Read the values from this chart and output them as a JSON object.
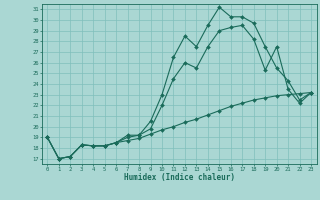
{
  "xlabel": "Humidex (Indice chaleur)",
  "xlim": [
    -0.5,
    23.5
  ],
  "ylim": [
    16.5,
    31.5
  ],
  "xticks": [
    0,
    1,
    2,
    3,
    4,
    5,
    6,
    7,
    8,
    9,
    10,
    11,
    12,
    13,
    14,
    15,
    16,
    17,
    18,
    19,
    20,
    21,
    22,
    23
  ],
  "yticks": [
    17,
    18,
    19,
    20,
    21,
    22,
    23,
    24,
    25,
    26,
    27,
    28,
    29,
    30,
    31
  ],
  "bg_color": "#aad7d3",
  "grid_color": "#80bfbb",
  "line_color": "#1a6b5a",
  "line1_x": [
    0,
    1,
    2,
    3,
    4,
    5,
    6,
    7,
    8,
    9,
    10,
    11,
    12,
    13,
    14,
    15,
    16,
    17,
    18,
    19,
    20,
    21,
    22,
    23
  ],
  "line1_y": [
    19.0,
    17.0,
    17.2,
    18.3,
    18.2,
    18.2,
    18.5,
    19.2,
    19.2,
    20.5,
    23.0,
    26.5,
    28.5,
    27.5,
    29.5,
    31.2,
    30.3,
    30.3,
    29.7,
    27.5,
    25.5,
    24.3,
    22.5,
    23.2
  ],
  "line2_x": [
    0,
    1,
    2,
    3,
    4,
    5,
    6,
    7,
    8,
    9,
    10,
    11,
    12,
    13,
    14,
    15,
    16,
    17,
    18,
    19,
    20,
    21,
    22,
    23
  ],
  "line2_y": [
    19.0,
    17.0,
    17.2,
    18.3,
    18.2,
    18.2,
    18.5,
    19.0,
    19.2,
    19.8,
    22.0,
    24.5,
    26.0,
    25.5,
    27.5,
    29.0,
    29.3,
    29.5,
    28.2,
    25.3,
    27.5,
    23.5,
    22.2,
    23.2
  ],
  "line3_x": [
    0,
    1,
    2,
    3,
    4,
    5,
    6,
    7,
    8,
    9,
    10,
    11,
    12,
    13,
    14,
    15,
    16,
    17,
    18,
    19,
    20,
    21,
    22,
    23
  ],
  "line3_y": [
    19.0,
    17.0,
    17.2,
    18.3,
    18.2,
    18.2,
    18.5,
    18.7,
    18.9,
    19.3,
    19.7,
    20.0,
    20.4,
    20.7,
    21.1,
    21.5,
    21.9,
    22.2,
    22.5,
    22.7,
    22.9,
    23.0,
    23.1,
    23.2
  ]
}
